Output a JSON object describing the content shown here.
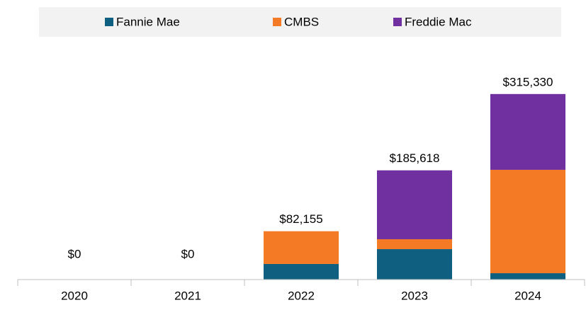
{
  "chart_data": {
    "type": "stacked_bar",
    "categories": [
      "2020",
      "2021",
      "2022",
      "2023",
      "2024"
    ],
    "series": [
      {
        "name": "Fannie Mae",
        "color": "#0e5f80",
        "values": [
          0,
          0,
          26500,
          51700,
          10800
        ]
      },
      {
        "name": "CMBS",
        "color": "#f47a26",
        "values": [
          0,
          0,
          55655,
          16850,
          175700
        ]
      },
      {
        "name": "Freddie Mac",
        "color": "#7030a0",
        "values": [
          0,
          0,
          0,
          117068,
          128830
        ]
      }
    ],
    "totals": [
      0,
      0,
      82155,
      185618,
      315330
    ],
    "total_labels": [
      "$0",
      "$0",
      "$82,155",
      "$185,618",
      "$315,330"
    ],
    "ylim": [
      0,
      350000
    ],
    "legend": "top"
  }
}
